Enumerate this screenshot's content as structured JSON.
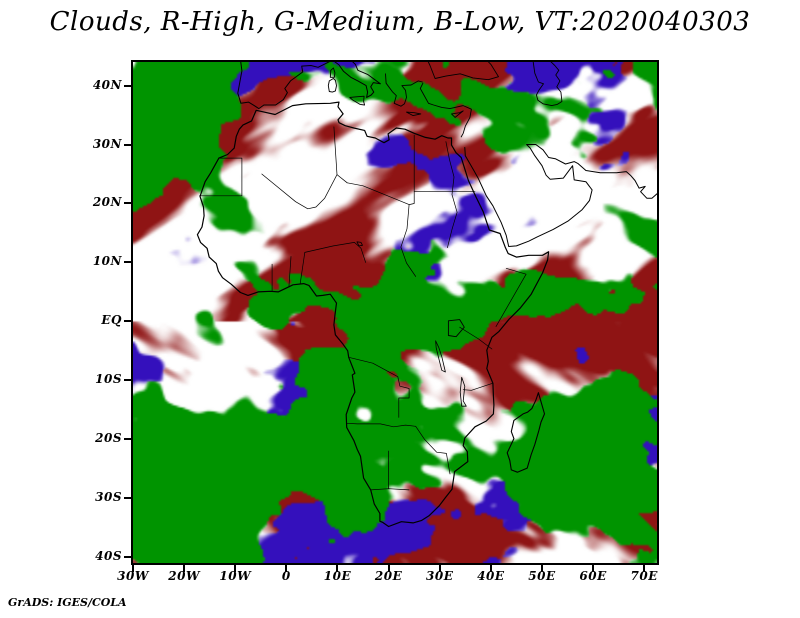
{
  "header": {
    "title": "Clouds, R-High, G-Medium, B-Low, VT:2020040303"
  },
  "footer": {
    "attribution": "GrADS: IGES/COLA"
  },
  "chart_data": {
    "type": "heatmap",
    "variant": "rgb-composite-satellite-cloud-map",
    "title": "Clouds, R-High, G-Medium, B-Low, VT:2020040303",
    "valid_time": "2020040303",
    "region": "Africa and surrounding oceans",
    "projection": "latlon",
    "lon_range": [
      -30,
      72.5
    ],
    "lat_range": [
      -41,
      44
    ],
    "x_ticks": [
      {
        "value": -30,
        "label": "30W"
      },
      {
        "value": -20,
        "label": "20W"
      },
      {
        "value": -10,
        "label": "10W"
      },
      {
        "value": 0,
        "label": "0"
      },
      {
        "value": 10,
        "label": "10E"
      },
      {
        "value": 20,
        "label": "20E"
      },
      {
        "value": 30,
        "label": "30E"
      },
      {
        "value": 40,
        "label": "40E"
      },
      {
        "value": 50,
        "label": "50E"
      },
      {
        "value": 60,
        "label": "60E"
      },
      {
        "value": 70,
        "label": "70E"
      }
    ],
    "y_ticks": [
      {
        "value": 40,
        "label": "40N"
      },
      {
        "value": 30,
        "label": "30N"
      },
      {
        "value": 20,
        "label": "20N"
      },
      {
        "value": 10,
        "label": "10N"
      },
      {
        "value": 0,
        "label": "EQ"
      },
      {
        "value": -10,
        "label": "10S"
      },
      {
        "value": -20,
        "label": "20S"
      },
      {
        "value": -30,
        "label": "30S"
      },
      {
        "value": -40,
        "label": "40S"
      }
    ],
    "channels": [
      {
        "band": "R",
        "meaning": "High clouds",
        "color": "#8f1414"
      },
      {
        "band": "G",
        "meaning": "Medium clouds",
        "color": "#009400"
      },
      {
        "band": "B",
        "meaning": "Low clouds",
        "color": "#3410bc"
      }
    ],
    "background_color": "#ffffff",
    "coastline_color": "#000000",
    "attribution": "GrADS: IGES/COLA",
    "data_note": "Continuous RGB composite cloud field (red=high, green=medium, blue=low cloud amount) over white background; coastlines and country borders overlaid in black."
  }
}
